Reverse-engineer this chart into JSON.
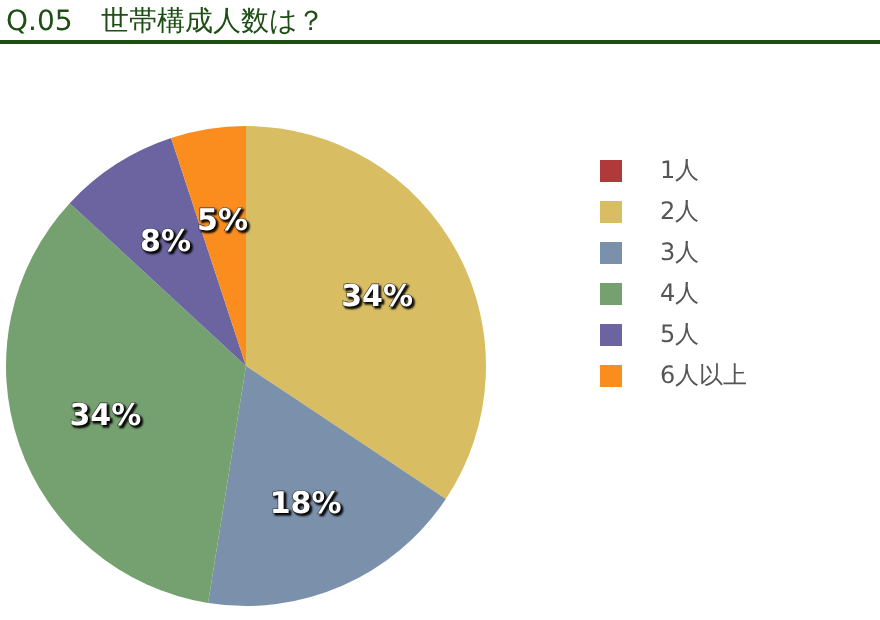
{
  "chart_data": {
    "type": "pie",
    "title": "Q.05　世帯構成人数は？",
    "categories": [
      "1人",
      "2人",
      "3人",
      "4人",
      "5人",
      "6人以上"
    ],
    "values": [
      0,
      34,
      18,
      34,
      8,
      5
    ],
    "colors": [
      "#b03a3a",
      "#d8bd63",
      "#7a90ab",
      "#74a16f",
      "#6c64a0",
      "#fb8c1e"
    ],
    "value_labels": [
      null,
      "34%",
      "18%",
      "34%",
      "8%",
      "5%"
    ],
    "legend": "right"
  }
}
